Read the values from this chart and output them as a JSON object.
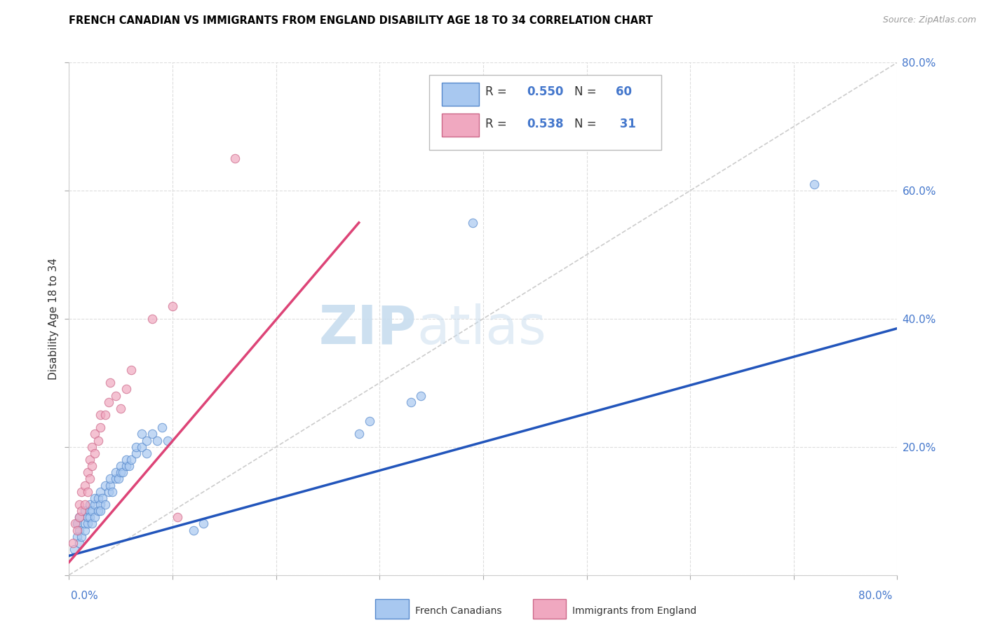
{
  "title": "FRENCH CANADIAN VS IMMIGRANTS FROM ENGLAND DISABILITY AGE 18 TO 34 CORRELATION CHART",
  "source": "Source: ZipAtlas.com",
  "ylabel": "Disability Age 18 to 34",
  "blue_label": "French Canadians",
  "pink_label": "Immigrants from England",
  "legend_blue_r": "0.550",
  "legend_blue_n": "60",
  "legend_pink_r": "0.538",
  "legend_pink_n": "31",
  "xlim": [
    0.0,
    0.8
  ],
  "ylim": [
    0.0,
    0.8
  ],
  "ytick_values": [
    0.0,
    0.2,
    0.4,
    0.6,
    0.8
  ],
  "xtick_values": [
    0.0,
    0.1,
    0.2,
    0.3,
    0.4,
    0.5,
    0.6,
    0.7,
    0.8
  ],
  "watermark_zip": "ZIP",
  "watermark_atlas": "atlas",
  "blue_color": "#A8C8F0",
  "pink_color": "#F0A8C0",
  "blue_edge_color": "#5588CC",
  "pink_edge_color": "#CC6688",
  "blue_line_color": "#2255BB",
  "pink_line_color": "#DD4477",
  "blue_line": [
    [
      0.0,
      0.03
    ],
    [
      0.8,
      0.385
    ]
  ],
  "pink_line": [
    [
      0.0,
      0.02
    ],
    [
      0.28,
      0.55
    ]
  ],
  "diag_line": [
    [
      0.0,
      0.0
    ],
    [
      0.8,
      0.8
    ]
  ],
  "blue_scatter": [
    [
      0.005,
      0.04
    ],
    [
      0.008,
      0.06
    ],
    [
      0.008,
      0.08
    ],
    [
      0.01,
      0.07
    ],
    [
      0.01,
      0.09
    ],
    [
      0.01,
      0.05
    ],
    [
      0.012,
      0.06
    ],
    [
      0.015,
      0.07
    ],
    [
      0.015,
      0.08
    ],
    [
      0.015,
      0.1
    ],
    [
      0.018,
      0.08
    ],
    [
      0.018,
      0.09
    ],
    [
      0.02,
      0.1
    ],
    [
      0.02,
      0.11
    ],
    [
      0.02,
      0.09
    ],
    [
      0.022,
      0.08
    ],
    [
      0.022,
      0.1
    ],
    [
      0.025,
      0.11
    ],
    [
      0.025,
      0.09
    ],
    [
      0.025,
      0.12
    ],
    [
      0.028,
      0.1
    ],
    [
      0.028,
      0.12
    ],
    [
      0.03,
      0.11
    ],
    [
      0.03,
      0.13
    ],
    [
      0.03,
      0.1
    ],
    [
      0.032,
      0.12
    ],
    [
      0.035,
      0.14
    ],
    [
      0.035,
      0.11
    ],
    [
      0.038,
      0.13
    ],
    [
      0.04,
      0.14
    ],
    [
      0.04,
      0.15
    ],
    [
      0.042,
      0.13
    ],
    [
      0.045,
      0.15
    ],
    [
      0.045,
      0.16
    ],
    [
      0.048,
      0.15
    ],
    [
      0.05,
      0.16
    ],
    [
      0.05,
      0.17
    ],
    [
      0.052,
      0.16
    ],
    [
      0.055,
      0.17
    ],
    [
      0.055,
      0.18
    ],
    [
      0.058,
      0.17
    ],
    [
      0.06,
      0.18
    ],
    [
      0.065,
      0.19
    ],
    [
      0.065,
      0.2
    ],
    [
      0.07,
      0.2
    ],
    [
      0.07,
      0.22
    ],
    [
      0.075,
      0.21
    ],
    [
      0.075,
      0.19
    ],
    [
      0.08,
      0.22
    ],
    [
      0.085,
      0.21
    ],
    [
      0.09,
      0.23
    ],
    [
      0.095,
      0.21
    ],
    [
      0.12,
      0.07
    ],
    [
      0.13,
      0.08
    ],
    [
      0.28,
      0.22
    ],
    [
      0.29,
      0.24
    ],
    [
      0.33,
      0.27
    ],
    [
      0.34,
      0.28
    ],
    [
      0.39,
      0.55
    ],
    [
      0.72,
      0.61
    ]
  ],
  "pink_scatter": [
    [
      0.004,
      0.05
    ],
    [
      0.006,
      0.08
    ],
    [
      0.008,
      0.07
    ],
    [
      0.01,
      0.09
    ],
    [
      0.01,
      0.11
    ],
    [
      0.012,
      0.1
    ],
    [
      0.012,
      0.13
    ],
    [
      0.015,
      0.11
    ],
    [
      0.015,
      0.14
    ],
    [
      0.018,
      0.13
    ],
    [
      0.018,
      0.16
    ],
    [
      0.02,
      0.15
    ],
    [
      0.02,
      0.18
    ],
    [
      0.022,
      0.17
    ],
    [
      0.022,
      0.2
    ],
    [
      0.025,
      0.19
    ],
    [
      0.025,
      0.22
    ],
    [
      0.028,
      0.21
    ],
    [
      0.03,
      0.23
    ],
    [
      0.03,
      0.25
    ],
    [
      0.035,
      0.25
    ],
    [
      0.038,
      0.27
    ],
    [
      0.04,
      0.3
    ],
    [
      0.045,
      0.28
    ],
    [
      0.05,
      0.26
    ],
    [
      0.055,
      0.29
    ],
    [
      0.06,
      0.32
    ],
    [
      0.08,
      0.4
    ],
    [
      0.1,
      0.42
    ],
    [
      0.105,
      0.09
    ],
    [
      0.16,
      0.65
    ]
  ]
}
